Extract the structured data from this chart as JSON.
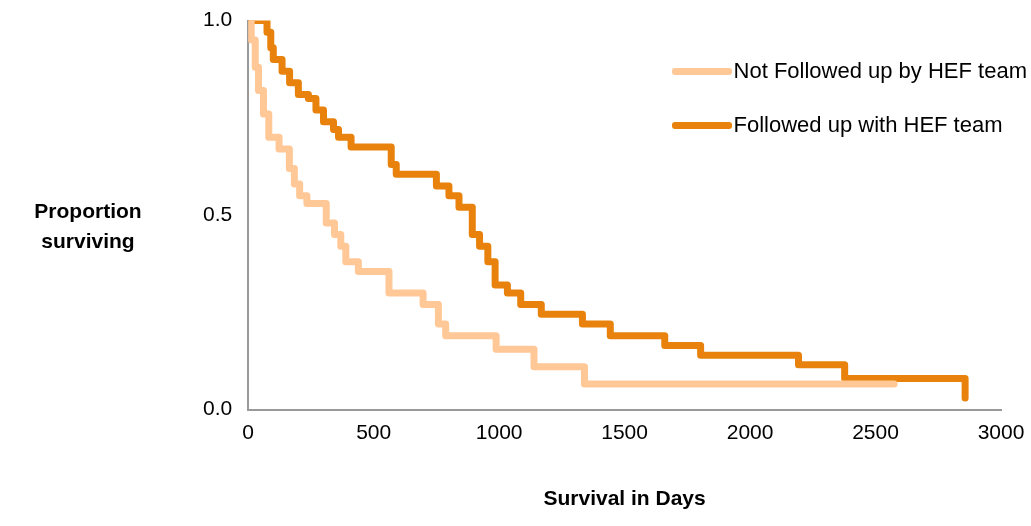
{
  "chart_data": {
    "type": "step",
    "xlabel": "Survival in Days",
    "ylabel": "Proportion surviving",
    "xlim": [
      0,
      3000
    ],
    "xticks": [
      0,
      500,
      1000,
      1500,
      2000,
      2500,
      3000
    ],
    "ylim": [
      0,
      1
    ],
    "yticks": [
      {
        "value": 0,
        "label": "0.0"
      },
      {
        "value": 0.5,
        "label": "0.5"
      },
      {
        "value": 1,
        "label": "1.0"
      }
    ],
    "grid": false,
    "legend": "top right",
    "marker": "none",
    "line_style": "solid",
    "series": [
      {
        "name": "Not Followed up by HEF team",
        "color": "#ffc896",
        "x": [
          0,
          12,
          28,
          41,
          61,
          82,
          123,
          164,
          184,
          205,
          234,
          311,
          344,
          369,
          389,
          439,
          561,
          697,
          758,
          787,
          988,
          1139,
          1340,
          2574
        ],
        "values": [
          1.0,
          0.95,
          0.88,
          0.82,
          0.76,
          0.7,
          0.67,
          0.62,
          0.58,
          0.55,
          0.53,
          0.48,
          0.45,
          0.42,
          0.38,
          0.355,
          0.3,
          0.27,
          0.22,
          0.19,
          0.155,
          0.11,
          0.066,
          0.066
        ]
      },
      {
        "name": "Followed up with HEF team",
        "color": "#e8820c",
        "x": [
          0,
          75,
          90,
          100,
          135,
          165,
          200,
          240,
          270,
          300,
          340,
          360,
          410,
          570,
          590,
          750,
          800,
          840,
          893,
          922,
          955,
          984,
          1033,
          1086,
          1168,
          1332,
          1443,
          1660,
          1803,
          2193,
          2377,
          2857,
          2857
        ],
        "values": [
          1.0,
          0.97,
          0.93,
          0.9,
          0.87,
          0.84,
          0.81,
          0.8,
          0.77,
          0.74,
          0.72,
          0.7,
          0.675,
          0.63,
          0.605,
          0.575,
          0.55,
          0.52,
          0.45,
          0.42,
          0.38,
          0.32,
          0.3,
          0.27,
          0.245,
          0.22,
          0.19,
          0.165,
          0.14,
          0.115,
          0.08,
          0.08,
          0.03
        ]
      }
    ]
  }
}
